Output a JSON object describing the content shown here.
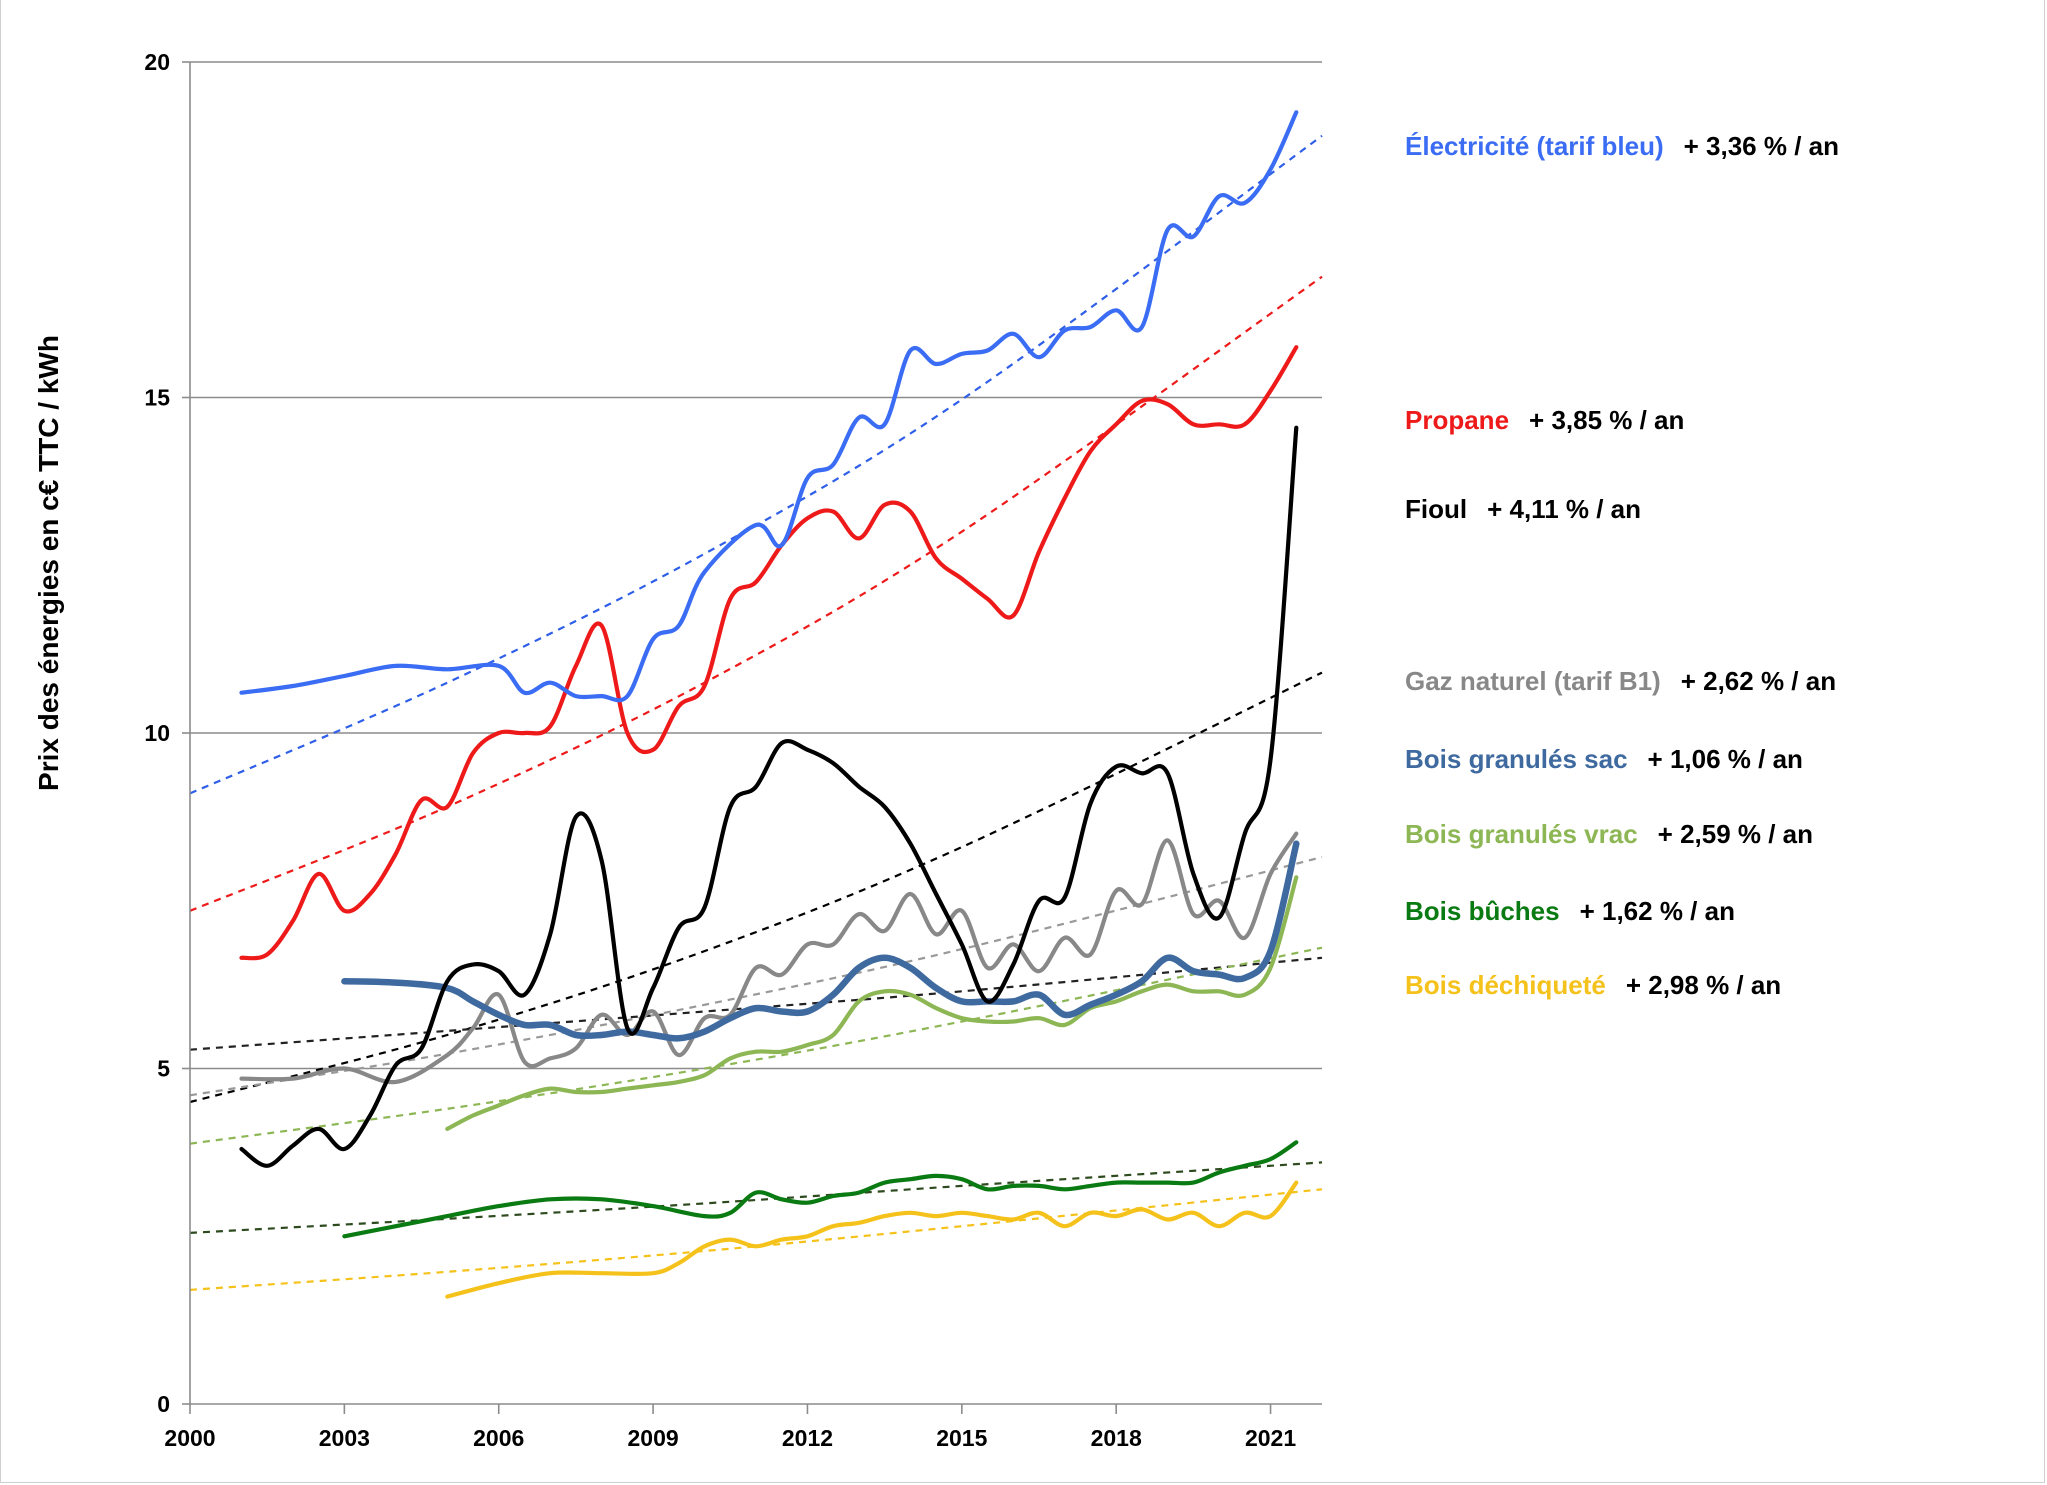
{
  "chart_data": {
    "type": "line",
    "ylabel": "Prix des énergies en c€ TTC / kWh",
    "xlabel": "",
    "xlim": [
      2000,
      2022
    ],
    "ylim": [
      0,
      20
    ],
    "x_ticks": [
      "2000",
      "2003",
      "2006",
      "2009",
      "2012",
      "2015",
      "2018",
      "2021"
    ],
    "y_ticks": [
      "0",
      "5",
      "10",
      "15",
      "20"
    ],
    "grid": "horizontal",
    "legend_position": "right",
    "series": [
      {
        "name": "Électricité (tarif bleu)",
        "rate": "+ 3,36 % / an",
        "color": "#3a6cf4",
        "trend_color": "#2f5fe8",
        "trend": [
          [
            2000,
            9.1
          ],
          [
            2005,
            10.75
          ],
          [
            2010,
            12.67
          ],
          [
            2015,
            14.97
          ],
          [
            2022,
            18.9
          ]
        ],
        "x": [
          2001,
          2002,
          2003,
          2004,
          2005,
          2006,
          2006.5,
          2007,
          2007.5,
          2008,
          2008.5,
          2009,
          2009.5,
          2010,
          2011,
          2011.5,
          2012,
          2012.5,
          2013,
          2013.5,
          2014,
          2014.5,
          2015,
          2015.5,
          2016,
          2016.5,
          2017,
          2017.5,
          2018,
          2018.5,
          2019,
          2019.5,
          2020,
          2020.5,
          2021,
          2021.5
        ],
        "values": [
          10.6,
          10.7,
          10.85,
          11.0,
          10.95,
          11.0,
          10.6,
          10.75,
          10.55,
          10.55,
          10.55,
          11.4,
          11.6,
          12.4,
          13.1,
          12.8,
          13.8,
          14.0,
          14.7,
          14.6,
          15.7,
          15.5,
          15.65,
          15.7,
          15.95,
          15.6,
          16.0,
          16.05,
          16.3,
          16.05,
          17.5,
          17.4,
          18.0,
          17.9,
          18.4,
          19.25
        ]
      },
      {
        "name": "Propane",
        "rate": "+ 3,85 % / an",
        "color": "#ee1a1a",
        "trend_color": "#ee1a1a",
        "trend": [
          [
            2000,
            7.35
          ],
          [
            2005,
            8.9
          ],
          [
            2010,
            10.75
          ],
          [
            2015,
            13.0
          ],
          [
            2022,
            16.8
          ]
        ],
        "x": [
          2001,
          2001.5,
          2002,
          2002.5,
          2003,
          2003.5,
          2004,
          2004.5,
          2005,
          2005.5,
          2006,
          2006.5,
          2007,
          2007.5,
          2008,
          2008.5,
          2009,
          2009.5,
          2010,
          2010.5,
          2011,
          2011.5,
          2012,
          2012.5,
          2013,
          2013.5,
          2014,
          2014.5,
          2015,
          2015.5,
          2016,
          2016.5,
          2017,
          2017.5,
          2018,
          2018.5,
          2019,
          2019.5,
          2020,
          2020.5,
          2021,
          2021.5
        ],
        "values": [
          6.65,
          6.7,
          7.2,
          7.9,
          7.35,
          7.6,
          8.2,
          9.0,
          8.9,
          9.7,
          10.0,
          10.0,
          10.1,
          11.0,
          11.6,
          10.0,
          9.75,
          10.4,
          10.7,
          12.0,
          12.25,
          12.8,
          13.2,
          13.3,
          12.9,
          13.4,
          13.3,
          12.6,
          12.3,
          12.0,
          11.75,
          12.7,
          13.5,
          14.2,
          14.6,
          14.95,
          14.9,
          14.6,
          14.6,
          14.6,
          15.1,
          15.75
        ]
      },
      {
        "name": "Fioul",
        "rate": "+ 4,11 % / an",
        "color": "#000000",
        "trend_color": "#000000",
        "trend": [
          [
            2000,
            4.5
          ],
          [
            2005,
            5.5
          ],
          [
            2010,
            6.75
          ],
          [
            2015,
            8.3
          ],
          [
            2022,
            10.9
          ]
        ],
        "x": [
          2001,
          2001.5,
          2002,
          2002.5,
          2003,
          2003.5,
          2004,
          2004.5,
          2005,
          2005.5,
          2006,
          2006.5,
          2007,
          2007.5,
          2008,
          2008.5,
          2009,
          2009.5,
          2010,
          2010.5,
          2011,
          2011.5,
          2012,
          2012.5,
          2013,
          2013.5,
          2014,
          2014.5,
          2015,
          2015.5,
          2016,
          2016.5,
          2017,
          2017.5,
          2018,
          2018.5,
          2019,
          2019.5,
          2020,
          2020.5,
          2021,
          2021.5
        ],
        "values": [
          3.8,
          3.55,
          3.85,
          4.1,
          3.8,
          4.3,
          5.05,
          5.3,
          6.3,
          6.55,
          6.45,
          6.1,
          7.0,
          8.75,
          8.1,
          5.6,
          6.2,
          7.1,
          7.4,
          8.9,
          9.2,
          9.85,
          9.75,
          9.55,
          9.2,
          8.9,
          8.35,
          7.6,
          6.85,
          6.0,
          6.55,
          7.5,
          7.55,
          8.95,
          9.5,
          9.4,
          9.4,
          7.9,
          7.25,
          8.5,
          9.6,
          14.55
        ]
      },
      {
        "name": "Gaz naturel (tarif B1)",
        "rate": "+ 2,62 % / an",
        "color": "#888888",
        "trend_color": "#999999",
        "trend": [
          [
            2000,
            4.6
          ],
          [
            2005,
            5.22
          ],
          [
            2010,
            5.95
          ],
          [
            2015,
            6.78
          ],
          [
            2022,
            8.15
          ]
        ],
        "x": [
          2001,
          2002,
          2003,
          2004,
          2005,
          2005.5,
          2006,
          2006.5,
          2007,
          2007.5,
          2008,
          2008.5,
          2009,
          2009.5,
          2010,
          2010.5,
          2011,
          2011.5,
          2012,
          2012.5,
          2013,
          2013.5,
          2014,
          2014.5,
          2015,
          2015.5,
          2016,
          2016.5,
          2017,
          2017.5,
          2018,
          2018.5,
          2019,
          2019.5,
          2020,
          2020.5,
          2021,
          2021.5
        ],
        "values": [
          4.85,
          4.85,
          5.0,
          4.8,
          5.2,
          5.6,
          6.1,
          5.1,
          5.15,
          5.3,
          5.8,
          5.5,
          5.85,
          5.2,
          5.75,
          5.8,
          6.5,
          6.4,
          6.85,
          6.85,
          7.3,
          7.05,
          7.6,
          7.0,
          7.35,
          6.5,
          6.85,
          6.45,
          6.95,
          6.7,
          7.65,
          7.45,
          8.4,
          7.3,
          7.5,
          6.95,
          7.9,
          8.5
        ]
      },
      {
        "name": "Bois granulés sac",
        "rate": "+ 1,06 % / an",
        "color": "#3f6aa0",
        "trend_color": "#222222",
        "trend": [
          [
            2000,
            5.28
          ],
          [
            2005,
            5.56
          ],
          [
            2010,
            5.85
          ],
          [
            2015,
            6.15
          ],
          [
            2022,
            6.65
          ]
        ],
        "x": [
          2003,
          2004,
          2005,
          2005.5,
          2006,
          2006.5,
          2007,
          2007.5,
          2008,
          2008.5,
          2009,
          2009.5,
          2010,
          2010.5,
          2011,
          2011.5,
          2012,
          2012.5,
          2013,
          2013.5,
          2014,
          2014.5,
          2015,
          2015.5,
          2016,
          2016.5,
          2017,
          2017.5,
          2018,
          2018.5,
          2019,
          2019.5,
          2020,
          2020.5,
          2021,
          2021.5
        ],
        "values": [
          6.3,
          6.28,
          6.2,
          6.0,
          5.8,
          5.65,
          5.65,
          5.5,
          5.5,
          5.55,
          5.5,
          5.45,
          5.55,
          5.75,
          5.9,
          5.85,
          5.85,
          6.1,
          6.5,
          6.65,
          6.5,
          6.2,
          6.0,
          6.0,
          6.0,
          6.1,
          5.8,
          5.95,
          6.1,
          6.3,
          6.65,
          6.45,
          6.4,
          6.35,
          6.75,
          8.35
        ]
      },
      {
        "name": "Bois granulés vrac",
        "rate": "+ 2,59 % / an",
        "color": "#8db654",
        "trend_color": "#8db654",
        "trend": [
          [
            2000,
            3.88
          ],
          [
            2005,
            4.4
          ],
          [
            2010,
            5.0
          ],
          [
            2015,
            5.7
          ],
          [
            2022,
            6.8
          ]
        ],
        "x": [
          2005,
          2005.5,
          2006,
          2006.5,
          2007,
          2007.5,
          2008,
          2008.5,
          2009,
          2009.5,
          2010,
          2010.5,
          2011,
          2011.5,
          2012,
          2012.5,
          2013,
          2013.5,
          2014,
          2014.5,
          2015,
          2015.5,
          2016,
          2016.5,
          2017,
          2017.5,
          2018,
          2018.5,
          2019,
          2019.5,
          2020,
          2020.5,
          2021,
          2021.5
        ],
        "values": [
          4.1,
          4.3,
          4.45,
          4.6,
          4.7,
          4.65,
          4.65,
          4.7,
          4.75,
          4.8,
          4.9,
          5.15,
          5.25,
          5.25,
          5.35,
          5.5,
          6.0,
          6.15,
          6.1,
          5.9,
          5.75,
          5.7,
          5.7,
          5.75,
          5.65,
          5.9,
          6.0,
          6.15,
          6.25,
          6.15,
          6.15,
          6.1,
          6.5,
          7.85
        ]
      },
      {
        "name": "Bois bûches",
        "rate": "+ 1,62 % / an",
        "color": "#0a7a12",
        "trend_color": "#2e4a1f",
        "trend": [
          [
            2000,
            2.55
          ],
          [
            2005,
            2.76
          ],
          [
            2010,
            2.99
          ],
          [
            2015,
            3.25
          ],
          [
            2022,
            3.6
          ]
        ],
        "x": [
          2003,
          2004,
          2005,
          2006,
          2007,
          2008,
          2009,
          2010,
          2010.5,
          2011,
          2011.5,
          2012,
          2012.5,
          2013,
          2013.5,
          2014,
          2014.5,
          2015,
          2015.5,
          2016,
          2016.5,
          2017,
          2017.5,
          2018,
          2018.5,
          2019,
          2019.5,
          2020,
          2020.5,
          2021,
          2021.5
        ],
        "values": [
          2.5,
          2.65,
          2.8,
          2.95,
          3.05,
          3.05,
          2.95,
          2.8,
          2.85,
          3.15,
          3.05,
          3.0,
          3.1,
          3.15,
          3.3,
          3.35,
          3.4,
          3.35,
          3.2,
          3.25,
          3.25,
          3.2,
          3.25,
          3.3,
          3.3,
          3.3,
          3.3,
          3.45,
          3.55,
          3.65,
          3.9
        ]
      },
      {
        "name": "Bois déchiqueté",
        "rate": "+ 2,98 % / an",
        "color": "#f5c21b",
        "trend_color": "#f5c21b",
        "trend": [
          [
            2000,
            1.7
          ],
          [
            2005,
            1.97
          ],
          [
            2010,
            2.28
          ],
          [
            2015,
            2.65
          ],
          [
            2022,
            3.2
          ]
        ],
        "x": [
          2005,
          2006,
          2007,
          2008,
          2009,
          2009.5,
          2010,
          2010.5,
          2011,
          2011.5,
          2012,
          2012.5,
          2013,
          2013.5,
          2014,
          2014.5,
          2015,
          2015.5,
          2016,
          2016.5,
          2017,
          2017.5,
          2018,
          2018.5,
          2019,
          2019.5,
          2020,
          2020.5,
          2021,
          2021.5
        ],
        "values": [
          1.6,
          1.8,
          1.95,
          1.95,
          1.95,
          2.1,
          2.35,
          2.45,
          2.35,
          2.45,
          2.5,
          2.65,
          2.7,
          2.8,
          2.85,
          2.8,
          2.85,
          2.8,
          2.75,
          2.85,
          2.65,
          2.85,
          2.8,
          2.9,
          2.75,
          2.85,
          2.65,
          2.85,
          2.8,
          3.3
        ]
      }
    ]
  }
}
